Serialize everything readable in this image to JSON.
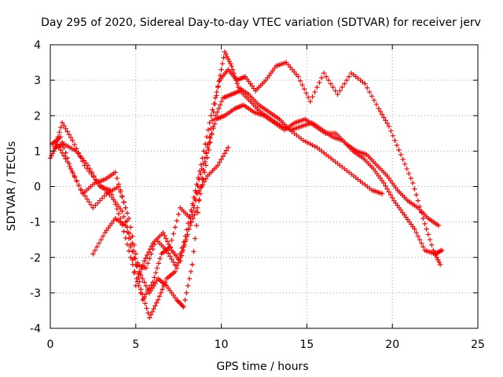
{
  "chart_data": {
    "type": "scatter",
    "title": "Day 295 of 2020, Sidereal Day-to-day VTEC variation (SDTVAR) for receiver jerv",
    "xlabel": "GPS time / hours",
    "ylabel": "SDTVAR / TECUs",
    "xlim": [
      0,
      25
    ],
    "ylim": [
      -4,
      4
    ],
    "xticks": [
      0,
      5,
      10,
      15,
      20,
      25
    ],
    "yticks": [
      -4,
      -3,
      -2,
      -1,
      0,
      1,
      2,
      3,
      4
    ],
    "xtick_labels": [
      "0",
      "5",
      "10",
      "15",
      "20",
      "25"
    ],
    "ytick_labels": [
      "-4",
      "-3",
      "-2",
      "-1",
      "0",
      "1",
      "2",
      "3",
      "4"
    ],
    "grid": true,
    "marker": "+",
    "color": "#ff0000",
    "series": [
      {
        "name": "satellite track A",
        "x": [
          0.0,
          0.4,
          1.0,
          1.8,
          2.5,
          3.3,
          4.0,
          4.6,
          5.2,
          5.8,
          6.3,
          6.8,
          7.4,
          7.8,
          8.3,
          8.8,
          9.3,
          9.8,
          10.2,
          10.6,
          11.0,
          11.6,
          12.2,
          12.8,
          13.4,
          14.0,
          14.8,
          15.6,
          16.4,
          17.2,
          18.0,
          18.8,
          19.4
        ],
        "y": [
          0.8,
          1.2,
          0.7,
          -0.1,
          -0.6,
          -0.2,
          0.0,
          -0.9,
          -2.4,
          -3.0,
          -2.6,
          -2.8,
          -3.2,
          -3.4,
          -2.2,
          0.0,
          1.4,
          2.8,
          3.8,
          3.4,
          2.8,
          2.6,
          2.3,
          2.1,
          1.9,
          1.6,
          1.3,
          1.1,
          0.8,
          0.5,
          0.2,
          -0.1,
          -0.2
        ]
      },
      {
        "name": "satellite track B",
        "x": [
          0.2,
          0.7,
          1.3,
          2.0,
          2.8,
          3.6,
          4.2,
          4.8,
          5.3,
          5.8,
          6.3,
          6.8,
          7.3,
          7.9,
          8.4,
          8.9,
          9.4,
          9.9,
          10.4,
          10.9,
          11.4,
          12.0,
          12.6,
          13.2,
          13.8,
          14.5,
          15.2,
          16.0,
          16.8,
          17.6,
          18.4,
          19.2,
          19.8,
          20.5,
          21.2,
          21.8,
          22.4,
          22.8
        ],
        "y": [
          1.0,
          1.8,
          1.3,
          0.6,
          0.1,
          -0.3,
          -0.7,
          -1.6,
          -2.9,
          -3.7,
          -3.2,
          -2.6,
          -2.4,
          -1.4,
          -0.3,
          0.8,
          2.0,
          3.0,
          3.3,
          3.0,
          3.1,
          2.7,
          3.0,
          3.4,
          3.5,
          3.1,
          2.4,
          3.2,
          2.6,
          3.2,
          2.9,
          2.2,
          1.7,
          0.9,
          0.1,
          -0.9,
          -1.8,
          -2.2
        ]
      },
      {
        "name": "satellite track C",
        "x": [
          0.1,
          0.6,
          1.2,
          1.9,
          2.6,
          3.2,
          3.8,
          4.4,
          5.0,
          5.5,
          6.0,
          6.6,
          7.1,
          7.6,
          8.1,
          8.6,
          9.1,
          9.6,
          10.1,
          10.6,
          11.1,
          11.7,
          12.3,
          12.9,
          13.5,
          14.1,
          14.7,
          15.3,
          15.9,
          16.5,
          17.1,
          17.7,
          18.3,
          18.9,
          19.5,
          20.1,
          20.7,
          21.3,
          21.9,
          22.5,
          22.9
        ],
        "y": [
          1.2,
          1.4,
          0.5,
          -0.2,
          0.1,
          0.2,
          0.4,
          -0.6,
          -2.8,
          -2.1,
          -1.6,
          -1.3,
          -1.8,
          -2.1,
          -1.2,
          -0.6,
          0.6,
          1.9,
          2.5,
          2.6,
          2.7,
          2.4,
          2.1,
          1.9,
          1.7,
          1.6,
          1.7,
          1.8,
          1.6,
          1.4,
          1.3,
          1.0,
          0.8,
          0.5,
          0.1,
          -0.4,
          -0.8,
          -1.2,
          -1.8,
          -1.9,
          -1.8
        ]
      },
      {
        "name": "satellite track D",
        "x": [
          0.3,
          0.8,
          1.5,
          2.2,
          2.9,
          3.5,
          4.1,
          4.7,
          5.4,
          6.0,
          6.5,
          7.0,
          7.6,
          8.2,
          8.7,
          9.2,
          9.7,
          10.2,
          10.8,
          11.3,
          11.9,
          12.5,
          13.1,
          13.7,
          14.3,
          14.9,
          15.5,
          16.1,
          16.7,
          17.3,
          17.9,
          18.5,
          19.1,
          19.7,
          20.3,
          20.9,
          21.5,
          22.1,
          22.7
        ],
        "y": [
          1.1,
          1.2,
          1.0,
          0.6,
          0.0,
          -0.1,
          -0.9,
          -2.0,
          -3.2,
          -2.7,
          -1.9,
          -1.7,
          -0.6,
          -0.9,
          0.2,
          1.1,
          1.9,
          2.0,
          2.2,
          2.3,
          2.1,
          2.0,
          1.8,
          1.6,
          1.8,
          1.9,
          1.7,
          1.5,
          1.5,
          1.2,
          1.0,
          0.9,
          0.6,
          0.3,
          -0.1,
          -0.4,
          -0.6,
          -0.9,
          -1.1
        ]
      },
      {
        "name": "satellite track E",
        "x": [
          2.5,
          3.2,
          3.8,
          4.4,
          5.0,
          5.6,
          6.2,
          6.8,
          7.4,
          8.0,
          8.6,
          9.2,
          9.8,
          10.4
        ],
        "y": [
          -1.9,
          -1.3,
          -0.9,
          -1.1,
          -2.2,
          -2.3,
          -1.5,
          -1.8,
          -2.3,
          -1.4,
          -0.2,
          0.3,
          0.6,
          1.1
        ]
      }
    ]
  }
}
